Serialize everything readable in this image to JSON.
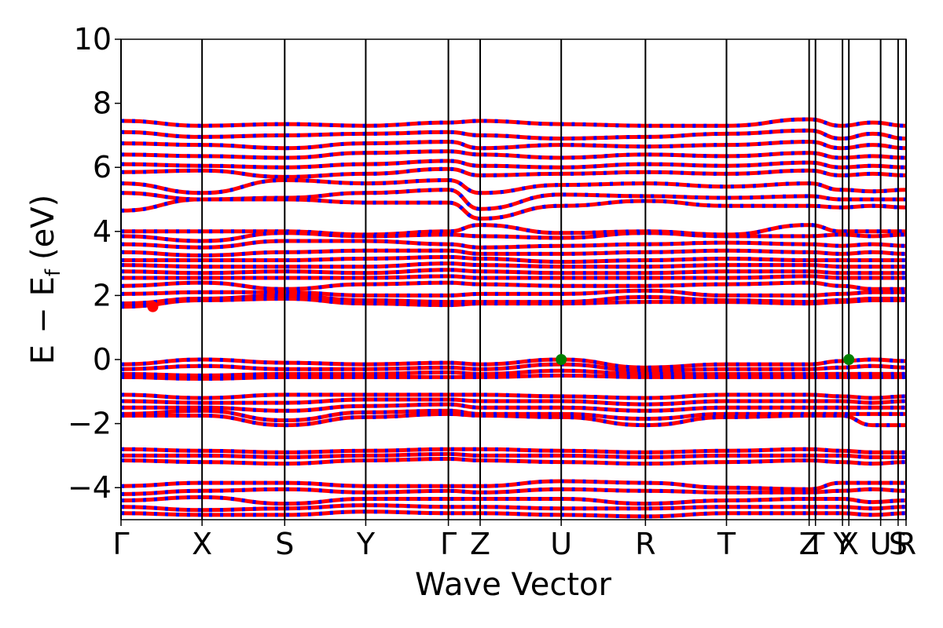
{
  "chart_data": {
    "type": "line",
    "title": "",
    "xlabel": "Wave Vector",
    "ylabel": "E − E_f (eV)",
    "ylabel_parts": {
      "E1": "E",
      "minus": "−",
      "E2": "E",
      "sub": "f",
      "unit": "(eV)"
    },
    "ylim": [
      -5,
      10
    ],
    "yticks": [
      {
        "value": 10,
        "label": "10"
      },
      {
        "value": 8,
        "label": "8"
      },
      {
        "value": 6,
        "label": "6"
      },
      {
        "value": 4,
        "label": "4"
      },
      {
        "value": 2,
        "label": "2"
      },
      {
        "value": 0,
        "label": "0"
      },
      {
        "value": -2,
        "label": "−2"
      },
      {
        "value": -4,
        "label": "−4"
      }
    ],
    "xlim": [
      0,
      24.7
    ],
    "kpoints": [
      {
        "label": "Γ",
        "x": 0
      },
      {
        "label": "X",
        "x": 2.55
      },
      {
        "label": "S",
        "x": 5.15
      },
      {
        "label": "Y",
        "x": 7.7
      },
      {
        "label": "Γ",
        "x": 10.3
      },
      {
        "label": "Z",
        "x": 11.3
      },
      {
        "label": "U",
        "x": 13.85
      },
      {
        "label": "R",
        "x": 16.5
      },
      {
        "label": "T",
        "x": 19.05
      },
      {
        "label": "Z",
        "x": 21.65
      },
      {
        "label": "T",
        "x": 21.85
      },
      {
        "label": "Y",
        "x": 22.7
      },
      {
        "label": "X",
        "x": 22.9
      },
      {
        "label": "U",
        "x": 23.9
      },
      {
        "label": "S",
        "x": 24.45
      },
      {
        "label": "R",
        "x": 24.7
      }
    ],
    "segment_boundaries": [
      0,
      2.55,
      5.15,
      7.7,
      10.3,
      11.3,
      13.85,
      16.5,
      19.05,
      21.65,
      22.65,
      23.65,
      24.7
    ],
    "series": [
      {
        "color": "#ff0000",
        "overlay_color": "#0000ff",
        "energies": [
          [
            7.45,
            7.3,
            7.35,
            7.3,
            7.4,
            7.45,
            7.35,
            7.3,
            7.3,
            7.5,
            7.3,
            7.4,
            7.3
          ],
          [
            7.1,
            6.95,
            7.0,
            7.05,
            7.1,
            7.0,
            6.9,
            6.95,
            7.05,
            7.15,
            6.9,
            7.05,
            6.9
          ],
          [
            6.75,
            6.7,
            6.6,
            6.75,
            6.8,
            6.6,
            6.7,
            6.65,
            6.7,
            6.8,
            6.6,
            6.7,
            6.6
          ],
          [
            6.4,
            6.35,
            6.3,
            6.45,
            6.5,
            6.4,
            6.3,
            6.4,
            6.35,
            6.45,
            6.3,
            6.35,
            6.3
          ],
          [
            6.1,
            6.05,
            6.0,
            6.1,
            6.2,
            6.05,
            6.0,
            6.1,
            6.05,
            6.15,
            6.0,
            6.05,
            6.0
          ],
          [
            5.85,
            5.9,
            5.7,
            5.8,
            5.95,
            5.75,
            5.8,
            5.85,
            5.8,
            5.9,
            5.75,
            5.8,
            5.75
          ],
          [
            5.5,
            5.2,
            5.6,
            5.5,
            5.6,
            5.2,
            5.45,
            5.5,
            5.4,
            5.5,
            5.3,
            5.25,
            5.3
          ],
          [
            5.2,
            5.0,
            5.05,
            5.2,
            5.3,
            4.7,
            5.15,
            5.1,
            5.05,
            5.1,
            5.0,
            5.0,
            5.0
          ],
          [
            4.65,
            5.0,
            5.0,
            4.9,
            4.9,
            4.4,
            4.8,
            4.95,
            4.8,
            4.8,
            4.75,
            4.8,
            4.75
          ],
          [
            4.0,
            4.0,
            4.0,
            3.9,
            4.0,
            4.2,
            3.95,
            4.0,
            3.9,
            4.2,
            4.0,
            4.0,
            4.0
          ],
          [
            3.85,
            3.7,
            3.95,
            3.85,
            3.9,
            3.85,
            3.8,
            3.95,
            3.85,
            3.85,
            3.9,
            3.85,
            3.9
          ],
          [
            3.6,
            3.5,
            3.7,
            3.7,
            3.6,
            3.5,
            3.55,
            3.6,
            3.65,
            3.6,
            3.55,
            3.6,
            3.55
          ],
          [
            3.35,
            3.25,
            3.35,
            3.4,
            3.4,
            3.3,
            3.3,
            3.35,
            3.4,
            3.35,
            3.3,
            3.35,
            3.3
          ],
          [
            3.1,
            3.1,
            3.1,
            3.15,
            3.2,
            3.15,
            3.05,
            3.1,
            3.15,
            3.1,
            3.1,
            3.1,
            3.1
          ],
          [
            2.95,
            2.9,
            2.9,
            2.9,
            3.0,
            2.95,
            2.9,
            2.9,
            2.95,
            2.95,
            2.9,
            2.9,
            2.9
          ],
          [
            2.75,
            2.7,
            2.75,
            2.7,
            2.8,
            2.75,
            2.7,
            2.7,
            2.75,
            2.75,
            2.7,
            2.7,
            2.7
          ],
          [
            2.55,
            2.55,
            2.55,
            2.55,
            2.6,
            2.55,
            2.55,
            2.55,
            2.55,
            2.6,
            2.55,
            2.55,
            2.55
          ],
          [
            2.3,
            2.4,
            2.2,
            2.35,
            2.4,
            2.35,
            2.3,
            2.3,
            2.35,
            2.4,
            2.3,
            2.2,
            2.2
          ],
          [
            2.05,
            2.1,
            2.1,
            2.0,
            2.0,
            2.05,
            2.05,
            2.15,
            2.0,
            2.0,
            2.05,
            2.1,
            2.1
          ],
          [
            1.75,
            1.9,
            2.0,
            1.85,
            1.8,
            1.8,
            1.8,
            1.95,
            1.85,
            1.8,
            1.85,
            1.9,
            1.9
          ],
          [
            1.65,
            1.85,
            1.9,
            1.75,
            1.7,
            1.75,
            1.75,
            1.8,
            1.8,
            1.75,
            1.8,
            1.85,
            1.85
          ],
          [
            -0.15,
            0.0,
            -0.1,
            -0.15,
            -0.1,
            -0.15,
            0.0,
            -0.25,
            -0.15,
            -0.15,
            -0.05,
            0.0,
            -0.05
          ],
          [
            -0.3,
            -0.2,
            -0.3,
            -0.3,
            -0.25,
            -0.3,
            -0.15,
            -0.35,
            -0.3,
            -0.3,
            -0.25,
            -0.2,
            -0.25
          ],
          [
            -0.45,
            -0.5,
            -0.45,
            -0.45,
            -0.4,
            -0.45,
            -0.35,
            -0.45,
            -0.45,
            -0.45,
            -0.45,
            -0.45,
            -0.45
          ],
          [
            -0.55,
            -0.6,
            -0.55,
            -0.55,
            -0.55,
            -0.55,
            -0.5,
            -0.55,
            -0.55,
            -0.55,
            -0.55,
            -0.55,
            -0.55
          ],
          [
            -1.1,
            -1.2,
            -1.1,
            -1.1,
            -1.1,
            -1.1,
            -1.15,
            -1.2,
            -1.1,
            -1.1,
            -1.15,
            -1.2,
            -1.15
          ],
          [
            -1.3,
            -1.35,
            -1.35,
            -1.25,
            -1.25,
            -1.3,
            -1.3,
            -1.4,
            -1.3,
            -1.3,
            -1.3,
            -1.35,
            -1.3
          ],
          [
            -1.5,
            -1.5,
            -1.6,
            -1.45,
            -1.4,
            -1.5,
            -1.5,
            -1.6,
            -1.5,
            -1.5,
            -1.5,
            -1.5,
            -1.5
          ],
          [
            -1.7,
            -1.6,
            -1.9,
            -1.65,
            -1.6,
            -1.7,
            -1.7,
            -1.85,
            -1.7,
            -1.7,
            -1.7,
            -1.7,
            -1.7
          ],
          [
            -1.75,
            -1.75,
            -2.05,
            -1.8,
            -1.7,
            -1.75,
            -1.8,
            -2.05,
            -1.8,
            -1.75,
            -1.75,
            -2.05,
            -2.05
          ],
          [
            -2.8,
            -2.85,
            -2.9,
            -2.85,
            -2.8,
            -2.8,
            -2.85,
            -2.9,
            -2.85,
            -2.8,
            -2.85,
            -2.9,
            -2.9
          ],
          [
            -3.0,
            -3.0,
            -3.05,
            -3.0,
            -2.95,
            -3.0,
            -3.0,
            -3.05,
            -3.0,
            -3.0,
            -3.0,
            -3.05,
            -3.05
          ],
          [
            -3.15,
            -3.2,
            -3.25,
            -3.15,
            -3.1,
            -3.15,
            -3.2,
            -3.25,
            -3.2,
            -3.15,
            -3.2,
            -3.25,
            -3.2
          ],
          [
            -3.95,
            -3.85,
            -3.85,
            -3.95,
            -3.95,
            -3.95,
            -3.8,
            -3.85,
            -4.0,
            -4.05,
            -3.85,
            -3.85,
            -3.85
          ],
          [
            -4.2,
            -4.1,
            -4.05,
            -4.15,
            -4.1,
            -4.15,
            -4.05,
            -4.1,
            -4.15,
            -4.15,
            -4.1,
            -4.05,
            -4.1
          ],
          [
            -4.4,
            -4.3,
            -4.5,
            -4.35,
            -4.35,
            -4.35,
            -4.35,
            -4.5,
            -4.4,
            -4.35,
            -4.35,
            -4.45,
            -4.4
          ],
          [
            -4.6,
            -4.7,
            -4.65,
            -4.55,
            -4.6,
            -4.6,
            -4.65,
            -4.65,
            -4.6,
            -4.6,
            -4.6,
            -4.65,
            -4.6
          ],
          [
            -4.8,
            -4.85,
            -4.85,
            -4.75,
            -4.8,
            -4.8,
            -4.85,
            -4.9,
            -4.8,
            -4.8,
            -4.8,
            -4.85,
            -4.8
          ]
        ]
      }
    ],
    "markers": [
      {
        "x": 1.0,
        "y": 1.65,
        "color": "#ff0000"
      },
      {
        "x": 13.85,
        "y": 0.0,
        "color": "#008000"
      },
      {
        "x": 22.9,
        "y": 0.0,
        "color": "#008000"
      }
    ]
  }
}
